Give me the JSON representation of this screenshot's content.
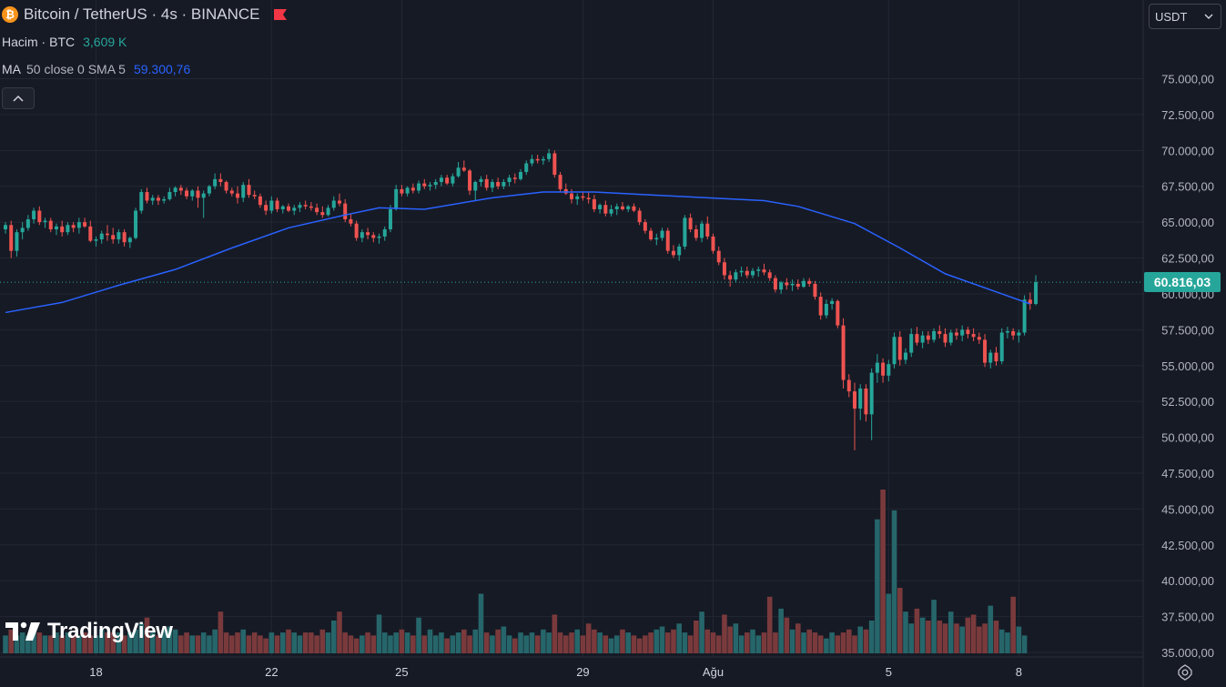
{
  "legend": {
    "symbol": "Bitcoin / TetherUS · 4s · BINANCE",
    "volume_label": "Hacim · BTC",
    "volume_value": "3,609 K",
    "ma_label": "MA",
    "ma_params": "50 close 0 SMA 5",
    "ma_value": "59.300,76"
  },
  "currency_select": {
    "value": "USDT"
  },
  "last_price_label": "60.816,03",
  "branding": "TradingView",
  "colors": {
    "background": "#161a25",
    "up": "#26a69a",
    "down": "#ef5350",
    "ma": "#2962ff",
    "vol_up": "#26666a",
    "vol_down": "#7a3a3c",
    "grid": "#232733"
  },
  "chart_data": {
    "type": "candlestick",
    "interval": "4s",
    "y_axis": {
      "min": 35000,
      "max": 77000,
      "ticks": [
        35000,
        37500,
        40000,
        42500,
        45000,
        47500,
        50000,
        52500,
        55000,
        57500,
        60000,
        62500,
        65000,
        67500,
        70000,
        72500,
        75000
      ],
      "tick_labels": [
        "35.000,00",
        "37.500,00",
        "40.000,00",
        "42.500,00",
        "45.000,00",
        "47.500,00",
        "50.000,00",
        "52.500,00",
        "55.000,00",
        "57.500,00",
        "60.000,00",
        "62.500,00",
        "65.000,00",
        "67.500,00",
        "70.000,00",
        "72.500,00",
        "75.000,00"
      ]
    },
    "x_axis": {
      "labels": [
        {
          "text": "18",
          "bar": 16
        },
        {
          "text": "22",
          "bar": 47
        },
        {
          "text": "25",
          "bar": 70
        },
        {
          "text": "29",
          "bar": 102
        },
        {
          "text": "Ağu",
          "bar": 125
        },
        {
          "text": "5",
          "bar": 156
        },
        {
          "text": "8",
          "bar": 179
        }
      ]
    },
    "last_price": 60816.03,
    "candles": [
      [
        64500,
        65000,
        64200,
        64800
      ],
      [
        64800,
        65100,
        62500,
        63000
      ],
      [
        63000,
        64500,
        62600,
        64300
      ],
      [
        64300,
        65000,
        63800,
        64600
      ],
      [
        64600,
        65500,
        64400,
        65200
      ],
      [
        65200,
        66000,
        64900,
        65800
      ],
      [
        65800,
        66100,
        64800,
        65000
      ],
      [
        65000,
        65300,
        64600,
        65100
      ],
      [
        65100,
        65300,
        64300,
        64500
      ],
      [
        64500,
        64900,
        64100,
        64700
      ],
      [
        64700,
        65100,
        64000,
        64300
      ],
      [
        64300,
        65000,
        64100,
        64800
      ],
      [
        64800,
        65000,
        64300,
        64600
      ],
      [
        64600,
        65300,
        64200,
        65000
      ],
      [
        65000,
        65300,
        64600,
        64700
      ],
      [
        64700,
        65100,
        63600,
        63700
      ],
      [
        63700,
        64000,
        63300,
        63800
      ],
      [
        63800,
        64400,
        63500,
        64200
      ],
      [
        64200,
        64800,
        63700,
        64100
      ],
      [
        64100,
        64600,
        63500,
        63800
      ],
      [
        63800,
        64500,
        63500,
        64300
      ],
      [
        64300,
        64500,
        63300,
        63600
      ],
      [
        63600,
        64000,
        63200,
        63900
      ],
      [
        63900,
        66000,
        63800,
        65800
      ],
      [
        65800,
        67300,
        65600,
        67100
      ],
      [
        67100,
        67400,
        66300,
        66500
      ],
      [
        66500,
        66900,
        66200,
        66700
      ],
      [
        66700,
        66900,
        66200,
        66500
      ],
      [
        66500,
        66800,
        66300,
        66600
      ],
      [
        66600,
        67400,
        66500,
        67100
      ],
      [
        67100,
        67500,
        66800,
        67400
      ],
      [
        67400,
        67600,
        66900,
        67200
      ],
      [
        67200,
        67400,
        66600,
        66800
      ],
      [
        66800,
        67300,
        66500,
        67200
      ],
      [
        67200,
        67500,
        66000,
        66700
      ],
      [
        66700,
        67200,
        65300,
        67000
      ],
      [
        67000,
        67600,
        66800,
        67500
      ],
      [
        67500,
        68400,
        67300,
        68000
      ],
      [
        68000,
        68400,
        67500,
        67800
      ],
      [
        67800,
        67900,
        67000,
        67200
      ],
      [
        67200,
        67400,
        66800,
        67000
      ],
      [
        67000,
        67500,
        66300,
        66700
      ],
      [
        66700,
        67800,
        66400,
        67600
      ],
      [
        67600,
        68000,
        66700,
        66900
      ],
      [
        66900,
        67200,
        66600,
        66800
      ],
      [
        66800,
        67000,
        66000,
        66200
      ],
      [
        66200,
        66500,
        65500,
        65800
      ],
      [
        65800,
        66800,
        65600,
        66500
      ],
      [
        66500,
        66700,
        65700,
        65900
      ],
      [
        65900,
        66200,
        65600,
        66100
      ],
      [
        66100,
        66300,
        65700,
        65800
      ],
      [
        65800,
        66200,
        65500,
        66000
      ],
      [
        66000,
        66400,
        65700,
        66200
      ],
      [
        66200,
        66500,
        65900,
        66100
      ],
      [
        66100,
        66400,
        65800,
        66000
      ],
      [
        66000,
        66300,
        65500,
        65700
      ],
      [
        65700,
        66100,
        65300,
        65500
      ],
      [
        65500,
        66200,
        65400,
        66000
      ],
      [
        66000,
        66800,
        65800,
        66500
      ],
      [
        66500,
        67000,
        66100,
        66300
      ],
      [
        66300,
        66600,
        65000,
        65200
      ],
      [
        65200,
        65600,
        64700,
        64900
      ],
      [
        64900,
        65100,
        63700,
        63900
      ],
      [
        63900,
        64500,
        63600,
        64300
      ],
      [
        64300,
        64600,
        63800,
        64100
      ],
      [
        64100,
        64300,
        63600,
        63900
      ],
      [
        63900,
        64200,
        63500,
        64000
      ],
      [
        64000,
        64700,
        63700,
        64500
      ],
      [
        64500,
        66200,
        64300,
        65900
      ],
      [
        65900,
        67600,
        65800,
        67300
      ],
      [
        67300,
        67600,
        66800,
        67000
      ],
      [
        67000,
        67500,
        66800,
        67400
      ],
      [
        67400,
        67700,
        67000,
        67200
      ],
      [
        67200,
        67900,
        67000,
        67700
      ],
      [
        67700,
        68000,
        67300,
        67500
      ],
      [
        67500,
        67800,
        67200,
        67600
      ],
      [
        67600,
        68000,
        67300,
        67800
      ],
      [
        67800,
        68300,
        67500,
        68100
      ],
      [
        68100,
        68300,
        67600,
        67700
      ],
      [
        67700,
        68400,
        67500,
        68200
      ],
      [
        68200,
        69200,
        68100,
        68800
      ],
      [
        68800,
        69300,
        68500,
        68600
      ],
      [
        68600,
        68700,
        66900,
        67200
      ],
      [
        67200,
        67900,
        66500,
        67800
      ],
      [
        67800,
        68200,
        67500,
        68000
      ],
      [
        68000,
        68300,
        67200,
        67400
      ],
      [
        67400,
        68000,
        67100,
        67800
      ],
      [
        67800,
        68100,
        67300,
        67500
      ],
      [
        67500,
        68000,
        67300,
        67800
      ],
      [
        67800,
        68300,
        67500,
        68100
      ],
      [
        68100,
        68400,
        67700,
        68000
      ],
      [
        68000,
        68700,
        67900,
        68500
      ],
      [
        68500,
        69300,
        68300,
        69100
      ],
      [
        69100,
        69700,
        68900,
        69400
      ],
      [
        69400,
        69700,
        69100,
        69300
      ],
      [
        69300,
        69600,
        69000,
        69400
      ],
      [
        69400,
        70100,
        69200,
        69800
      ],
      [
        69800,
        70000,
        68100,
        68300
      ],
      [
        68300,
        68500,
        67100,
        67300
      ],
      [
        67300,
        67700,
        66900,
        67000
      ],
      [
        67000,
        67300,
        66300,
        66600
      ],
      [
        66600,
        67000,
        66200,
        66800
      ],
      [
        66800,
        67100,
        66500,
        66700
      ],
      [
        66700,
        67100,
        66300,
        66600
      ],
      [
        66600,
        66900,
        65700,
        65900
      ],
      [
        65900,
        66300,
        65600,
        66200
      ],
      [
        66200,
        66500,
        65400,
        65600
      ],
      [
        65600,
        66200,
        65400,
        65900
      ],
      [
        65900,
        66300,
        65500,
        66100
      ],
      [
        66100,
        66400,
        65800,
        65900
      ],
      [
        65900,
        66200,
        65700,
        66100
      ],
      [
        66100,
        66300,
        65700,
        65800
      ],
      [
        65800,
        66000,
        64800,
        65000
      ],
      [
        65000,
        65200,
        64200,
        64400
      ],
      [
        64400,
        64600,
        63700,
        63800
      ],
      [
        63800,
        64200,
        63400,
        63900
      ],
      [
        63900,
        64600,
        63700,
        64400
      ],
      [
        64400,
        64600,
        62800,
        63000
      ],
      [
        63000,
        63400,
        62500,
        62700
      ],
      [
        62700,
        63500,
        62300,
        63300
      ],
      [
        63300,
        65500,
        63100,
        65300
      ],
      [
        65300,
        65600,
        64300,
        64500
      ],
      [
        64500,
        64800,
        63700,
        63900
      ],
      [
        63900,
        65100,
        63600,
        64900
      ],
      [
        64900,
        65400,
        63800,
        64000
      ],
      [
        64000,
        64200,
        62800,
        63000
      ],
      [
        63000,
        63300,
        62000,
        62200
      ],
      [
        62200,
        62500,
        61000,
        61300
      ],
      [
        61300,
        61600,
        60500,
        61000
      ],
      [
        61000,
        61700,
        60800,
        61500
      ],
      [
        61500,
        61900,
        61200,
        61600
      ],
      [
        61600,
        61900,
        61100,
        61300
      ],
      [
        61300,
        61800,
        61100,
        61600
      ],
      [
        61600,
        61900,
        61200,
        61700
      ],
      [
        61700,
        62100,
        61300,
        61500
      ],
      [
        61500,
        61700,
        60900,
        61100
      ],
      [
        61100,
        61300,
        60100,
        60300
      ],
      [
        60300,
        60900,
        60000,
        60800
      ],
      [
        60800,
        61100,
        60300,
        60600
      ],
      [
        60600,
        61000,
        60200,
        60700
      ],
      [
        60700,
        61000,
        60300,
        60500
      ],
      [
        60500,
        61100,
        60400,
        60900
      ],
      [
        60900,
        61100,
        60500,
        60700
      ],
      [
        60700,
        60900,
        59600,
        59800
      ],
      [
        59800,
        60100,
        58200,
        58500
      ],
      [
        58500,
        59600,
        58300,
        59300
      ],
      [
        59300,
        59700,
        58900,
        59500
      ],
      [
        59500,
        59600,
        57600,
        57800
      ],
      [
        57800,
        58300,
        53400,
        54000
      ],
      [
        54000,
        54400,
        52800,
        53200
      ],
      [
        53200,
        53800,
        49100,
        52000
      ],
      [
        52000,
        53700,
        51200,
        53400
      ],
      [
        53400,
        53700,
        51100,
        51600
      ],
      [
        51600,
        54800,
        49800,
        54500
      ],
      [
        54500,
        55800,
        53800,
        55200
      ],
      [
        55200,
        55500,
        53800,
        54300
      ],
      [
        54300,
        55400,
        53900,
        55100
      ],
      [
        55100,
        57300,
        54800,
        57000
      ],
      [
        57000,
        57400,
        55000,
        55400
      ],
      [
        55400,
        56200,
        55100,
        55900
      ],
      [
        55900,
        57600,
        55600,
        57200
      ],
      [
        57200,
        57700,
        56400,
        56600
      ],
      [
        56600,
        57400,
        56200,
        57100
      ],
      [
        57100,
        57400,
        56500,
        56800
      ],
      [
        56800,
        57600,
        56600,
        57400
      ],
      [
        57400,
        57800,
        56900,
        57200
      ],
      [
        57200,
        57600,
        56300,
        56600
      ],
      [
        56600,
        57500,
        56400,
        57300
      ],
      [
        57300,
        57600,
        56800,
        57100
      ],
      [
        57100,
        57800,
        56700,
        57500
      ],
      [
        57500,
        57700,
        56900,
        57200
      ],
      [
        57200,
        57600,
        56700,
        57000
      ],
      [
        57000,
        57300,
        56500,
        56800
      ],
      [
        56800,
        57200,
        54900,
        55200
      ],
      [
        55200,
        56100,
        54800,
        55900
      ],
      [
        55900,
        56300,
        55000,
        55300
      ],
      [
        55300,
        57600,
        55100,
        57300
      ],
      [
        57300,
        57700,
        56900,
        57400
      ],
      [
        57400,
        57600,
        56800,
        57100
      ],
      [
        57100,
        57500,
        56600,
        57300
      ],
      [
        57300,
        59900,
        57100,
        59600
      ],
      [
        59600,
        60100,
        58900,
        59300
      ],
      [
        59300,
        61300,
        59200,
        60816
      ]
    ],
    "volumes": [
      12,
      16,
      12,
      14,
      12,
      18,
      14,
      12,
      12,
      14,
      12,
      14,
      12,
      12,
      14,
      12,
      12,
      16,
      14,
      14,
      14,
      12,
      14,
      16,
      20,
      24,
      14,
      12,
      16,
      18,
      16,
      12,
      14,
      12,
      12,
      14,
      12,
      16,
      28,
      14,
      12,
      14,
      16,
      12,
      14,
      12,
      10,
      14,
      12,
      14,
      16,
      14,
      12,
      14,
      14,
      12,
      16,
      14,
      22,
      28,
      14,
      12,
      10,
      12,
      14,
      12,
      26,
      14,
      12,
      14,
      16,
      14,
      12,
      24,
      12,
      16,
      12,
      14,
      10,
      12,
      14,
      16,
      12,
      16,
      40,
      14,
      12,
      16,
      18,
      12,
      10,
      14,
      12,
      14,
      12,
      16,
      14,
      26,
      14,
      12,
      14,
      16,
      12,
      20,
      16,
      14,
      12,
      10,
      12,
      16,
      14,
      12,
      10,
      12,
      14,
      16,
      18,
      14,
      16,
      20,
      14,
      12,
      22,
      28,
      16,
      14,
      12,
      26,
      18,
      20,
      12,
      14,
      16,
      12,
      14,
      38,
      14,
      30,
      24,
      16,
      20,
      14,
      16,
      14,
      12,
      10,
      14,
      12,
      14,
      16,
      12,
      18,
      16,
      22,
      90,
      110,
      40,
      96,
      44,
      28,
      20,
      30,
      24,
      22,
      36,
      22,
      20,
      28,
      20,
      18,
      24,
      26,
      18,
      20,
      32,
      22,
      16,
      14,
      38,
      18,
      12
    ],
    "ma_line": [
      [
        0,
        58700
      ],
      [
        10,
        59400
      ],
      [
        20,
        60600
      ],
      [
        30,
        61700
      ],
      [
        40,
        63200
      ],
      [
        50,
        64600
      ],
      [
        60,
        65500
      ],
      [
        66,
        66000
      ],
      [
        74,
        65900
      ],
      [
        86,
        66700
      ],
      [
        95,
        67100
      ],
      [
        104,
        67100
      ],
      [
        114,
        66900
      ],
      [
        124,
        66700
      ],
      [
        134,
        66500
      ],
      [
        140,
        66100
      ],
      [
        150,
        64900
      ],
      [
        158,
        63200
      ],
      [
        166,
        61400
      ],
      [
        176,
        60000
      ],
      [
        181,
        59300
      ]
    ]
  }
}
